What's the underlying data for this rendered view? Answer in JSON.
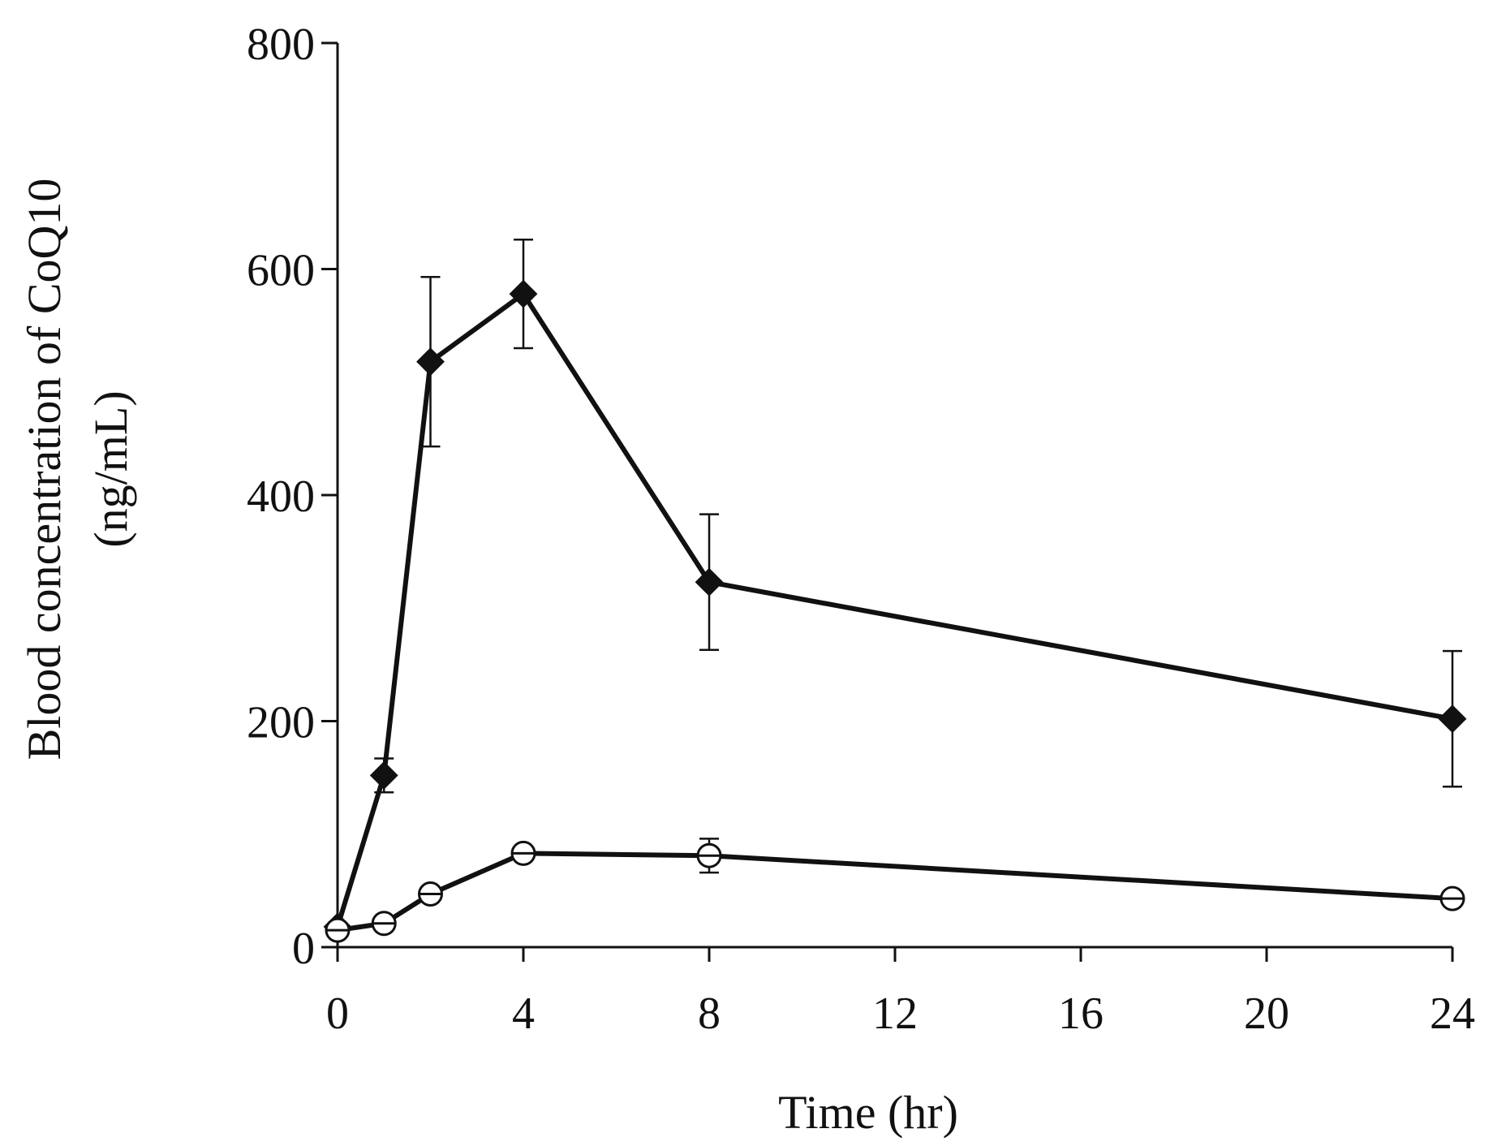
{
  "chart_data": {
    "type": "line",
    "title": "",
    "xlabel": "Time (hr)",
    "ylabel_lines": [
      "Blood concentration of CoQ10",
      "(ng/mL)"
    ],
    "xlim": [
      0,
      24
    ],
    "ylim": [
      0,
      800
    ],
    "xticks": [
      0,
      4,
      8,
      12,
      16,
      20,
      24
    ],
    "yticks": [
      0,
      200,
      400,
      600,
      800
    ],
    "grid": false,
    "legend": "none",
    "colors": {
      "axis": "#111111",
      "series": "#111111",
      "marker_fill": "#ffffff"
    },
    "series": [
      {
        "name": "filled diamond series",
        "marker": "diamond-filled",
        "x": [
          0,
          1,
          2,
          4,
          8,
          24
        ],
        "y": [
          18,
          152,
          518,
          578,
          323,
          202
        ],
        "err": [
          0,
          15,
          75,
          48,
          60,
          60
        ]
      },
      {
        "name": "open circle series",
        "marker": "circle-open",
        "x": [
          0,
          1,
          2,
          4,
          8,
          24
        ],
        "y": [
          15,
          21,
          47,
          83,
          81,
          43
        ],
        "err": [
          0,
          0,
          0,
          0,
          15,
          0
        ]
      }
    ]
  }
}
